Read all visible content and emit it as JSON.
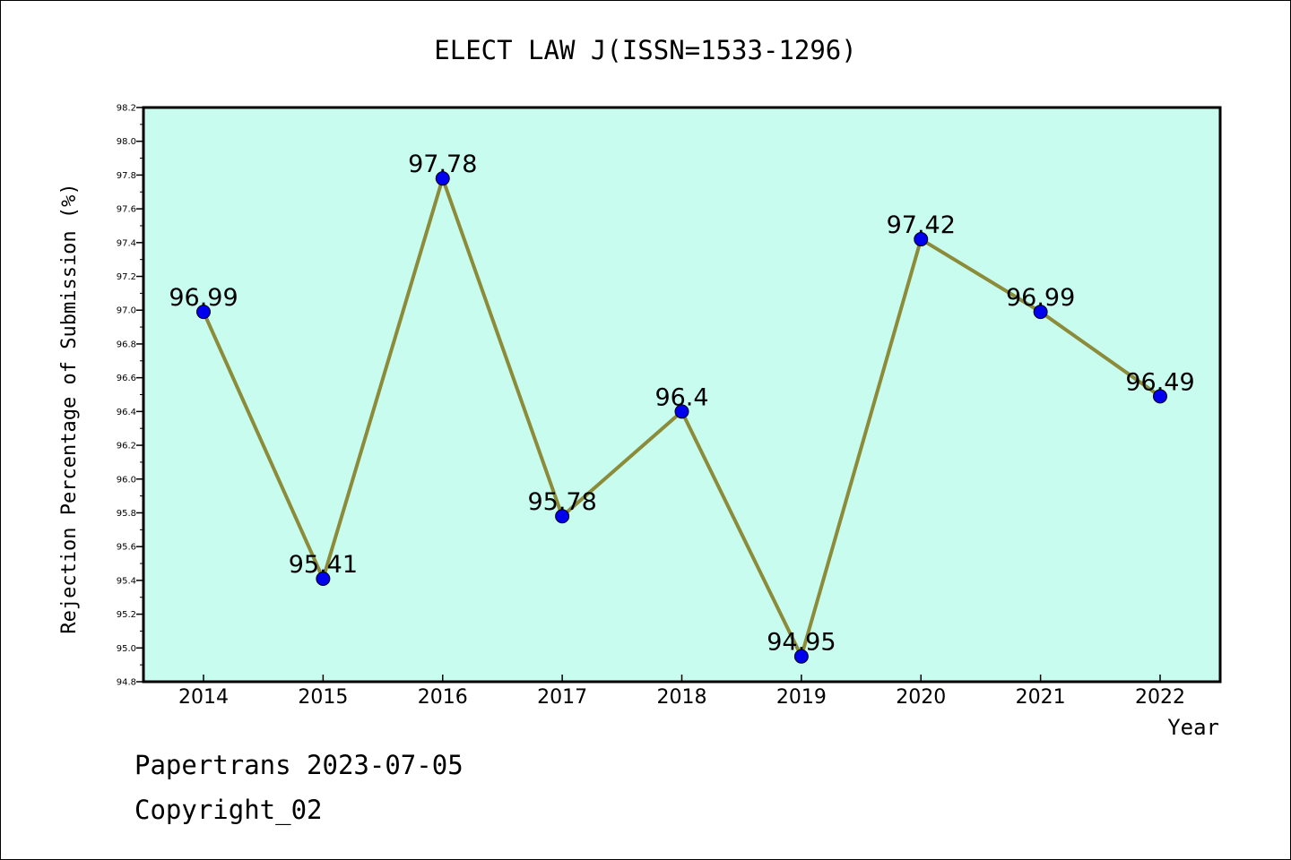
{
  "chart_data": {
    "type": "line",
    "title": "ELECT LAW J(ISSN=1533-1296)",
    "xlabel": "Year",
    "ylabel": "Rejection Percentage of Submission (%)",
    "categories": [
      "2014",
      "2015",
      "2016",
      "2017",
      "2018",
      "2019",
      "2020",
      "2021",
      "2022"
    ],
    "series": [
      {
        "values": [
          96.99,
          95.41,
          97.78,
          95.78,
          96.4,
          94.95,
          97.42,
          96.99,
          96.49
        ],
        "labels": [
          "96.99",
          "95.41",
          "97.78",
          "95.78",
          "96.4",
          "94.95",
          "97.42",
          "96.99",
          "96.49"
        ]
      }
    ],
    "ylim": [
      94.8,
      98.2
    ],
    "yticks": [
      "94.8",
      "95.0",
      "95.2",
      "95.4",
      "95.6",
      "95.8",
      "96.0",
      "96.2",
      "96.4",
      "96.6",
      "96.8",
      "97.0",
      "97.2",
      "97.4",
      "97.6",
      "97.8",
      "98.0",
      "98.2"
    ],
    "grid": false,
    "colors": {
      "plot_background": "#c8fcee",
      "line": "#8b8b3a",
      "marker": "#0000ee"
    }
  },
  "footer": {
    "line1": "Papertrans 2023-07-05",
    "line2": "Copyright_02"
  }
}
